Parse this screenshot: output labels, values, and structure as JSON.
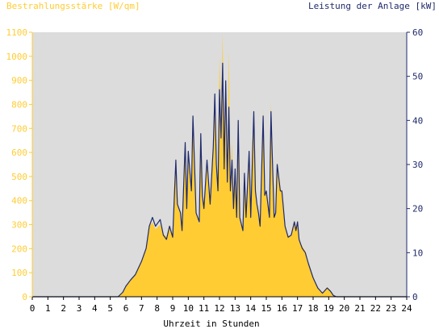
{
  "chart_data": {
    "type": "area",
    "title": "",
    "xlabel": "Uhrzeit in Stunden",
    "ylabel_left": "Bestrahlungsstärke [W/qm]",
    "ylabel_right": "Leistung der Anlage [kW]",
    "xlim": [
      0,
      24
    ],
    "ylim_left": [
      0,
      1100
    ],
    "ylim_right": [
      0,
      60
    ],
    "x_ticks": [
      "0",
      "1",
      "2",
      "3",
      "4",
      "5",
      "6",
      "7",
      "8",
      "9",
      "10",
      "11",
      "12",
      "13",
      "14",
      "15",
      "16",
      "17",
      "18",
      "19",
      "20",
      "21",
      "22",
      "23",
      "24"
    ],
    "y_ticks_left": [
      "0",
      "100",
      "200",
      "300",
      "400",
      "500",
      "600",
      "700",
      "800",
      "900",
      "1000",
      "1100"
    ],
    "y_ticks_right": [
      "0",
      "10",
      "20",
      "30",
      "40",
      "50",
      "60"
    ],
    "grid": false,
    "legend": "none",
    "series": [
      {
        "name": "Bestrahlungsstärke [W/qm]",
        "axis": "left",
        "style": "area",
        "color": "#ffcc33",
        "x": [
          0,
          5.5,
          5.8,
          6.0,
          6.3,
          6.6,
          7.0,
          7.3,
          7.5,
          7.7,
          7.9,
          8.2,
          8.4,
          8.6,
          8.8,
          9.0,
          9.2,
          9.3,
          9.5,
          9.6,
          9.8,
          9.9,
          10.0,
          10.2,
          10.3,
          10.5,
          10.7,
          10.8,
          10.9,
          11.0,
          11.2,
          11.4,
          11.6,
          11.7,
          11.8,
          11.9,
          12.0,
          12.1,
          12.2,
          12.3,
          12.4,
          12.5,
          12.6,
          12.7,
          12.8,
          12.9,
          13.0,
          13.1,
          13.2,
          13.3,
          13.5,
          13.6,
          13.7,
          13.9,
          14.0,
          14.2,
          14.3,
          14.4,
          14.5,
          14.6,
          14.8,
          14.9,
          15.0,
          15.2,
          15.3,
          15.5,
          15.6,
          15.7,
          15.9,
          16.0,
          16.2,
          16.4,
          16.6,
          16.8,
          16.9,
          17.0,
          17.1,
          17.2,
          17.3,
          17.5,
          17.7,
          18.0,
          18.3,
          18.6,
          18.9,
          19.1,
          19.3,
          19.5,
          19.8,
          20.0,
          20.3,
          24
        ],
        "y": [
          0,
          0,
          20,
          45,
          70,
          95,
          150,
          200,
          290,
          310,
          280,
          300,
          260,
          250,
          300,
          250,
          580,
          380,
          350,
          280,
          640,
          370,
          580,
          430,
          720,
          350,
          300,
          650,
          420,
          370,
          560,
          380,
          580,
          820,
          520,
          430,
          1000,
          720,
          1100,
          530,
          900,
          480,
          1030,
          450,
          650,
          380,
          550,
          330,
          720,
          330,
          280,
          520,
          330,
          610,
          340,
          770,
          450,
          380,
          350,
          300,
          780,
          420,
          440,
          340,
          810,
          340,
          350,
          560,
          450,
          440,
          300,
          250,
          260,
          320,
          280,
          300,
          240,
          220,
          210,
          190,
          140,
          80,
          40,
          15,
          40,
          25,
          5,
          0,
          0,
          0,
          0,
          0
        ]
      },
      {
        "name": "Leistung der Anlage [kW]",
        "axis": "right",
        "style": "line",
        "color": "#1f2a6b",
        "x": [
          0,
          5.5,
          5.8,
          6.0,
          6.3,
          6.6,
          7.0,
          7.3,
          7.5,
          7.7,
          7.9,
          8.2,
          8.4,
          8.6,
          8.8,
          9.0,
          9.2,
          9.3,
          9.5,
          9.6,
          9.8,
          9.9,
          10.0,
          10.2,
          10.3,
          10.5,
          10.7,
          10.8,
          10.9,
          11.0,
          11.2,
          11.4,
          11.6,
          11.7,
          11.8,
          11.9,
          12.0,
          12.1,
          12.2,
          12.3,
          12.4,
          12.5,
          12.6,
          12.7,
          12.8,
          12.9,
          13.0,
          13.1,
          13.2,
          13.3,
          13.5,
          13.6,
          13.7,
          13.9,
          14.0,
          14.2,
          14.3,
          14.4,
          14.5,
          14.6,
          14.8,
          14.9,
          15.0,
          15.2,
          15.3,
          15.5,
          15.6,
          15.7,
          15.9,
          16.0,
          16.2,
          16.4,
          16.6,
          16.8,
          16.9,
          17.0,
          17.1,
          17.2,
          17.3,
          17.5,
          17.7,
          18.0,
          18.3,
          18.6,
          18.9,
          19.1,
          19.3,
          19.5,
          19.8,
          20.0,
          20.3,
          24
        ],
        "y": [
          0,
          0,
          1,
          2.4,
          3.8,
          5,
          8,
          11,
          16,
          18,
          16,
          17.5,
          14,
          13,
          16,
          13.5,
          31,
          21,
          19,
          15,
          35,
          20,
          33,
          24,
          41,
          19,
          17,
          37,
          23,
          20,
          31,
          21,
          34,
          46,
          30,
          24,
          47,
          36,
          53,
          29,
          49,
          26,
          43,
          24,
          31,
          20,
          29,
          18,
          40,
          18,
          15,
          28,
          18,
          33,
          18,
          42,
          24,
          21,
          19,
          16,
          41,
          23,
          24,
          18,
          42,
          18,
          19,
          30,
          24,
          24,
          16,
          13.5,
          14,
          17,
          15,
          17,
          13,
          12,
          11,
          10,
          7.5,
          4.3,
          2,
          0.8,
          2,
          1.3,
          0.3,
          0,
          0,
          0,
          0,
          0
        ]
      }
    ]
  },
  "colors": {
    "plot_background": "#dcdcdc",
    "irradiance_fill": "#ffcc33",
    "power_line": "#1f2a6b",
    "left_axis_text": "#ffcc33",
    "right_axis_text": "#1f2a6b",
    "x_axis_text": "#000000"
  }
}
